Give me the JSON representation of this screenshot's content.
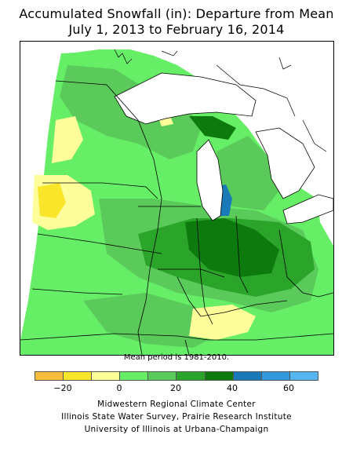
{
  "title_line1": "Accumulated Snowfall (in): Departure from Mean",
  "title_line2": "July 1, 2013 to February 16, 2014",
  "mean_note": "Mean period is 1981-2010.",
  "legend": {
    "swatch_colors": [
      "#f7bd3d",
      "#f9e62b",
      "#fdfd9a",
      "#66ee66",
      "#5acb5a",
      "#2aa52a",
      "#0d7a0d",
      "#1a7ab8",
      "#3399dd",
      "#55b5ee"
    ],
    "ticks": [
      "−20",
      "0",
      "20",
      "40",
      "60"
    ]
  },
  "credits": [
    "Midwestern Regional Climate Center",
    "Illinois State Water Survey, Prairie Research Institute",
    "University of Illinois at Urbana-Champaign"
  ],
  "colors": {
    "base_green": "#66ee66",
    "mid_green": "#5acb5a",
    "dark_green": "#2aa52a",
    "darkest_green": "#0d7a0d",
    "blue": "#1a7ab8",
    "light_yellow": "#fdfd9a",
    "yellow": "#f9e62b",
    "lake": "#ffffff"
  }
}
